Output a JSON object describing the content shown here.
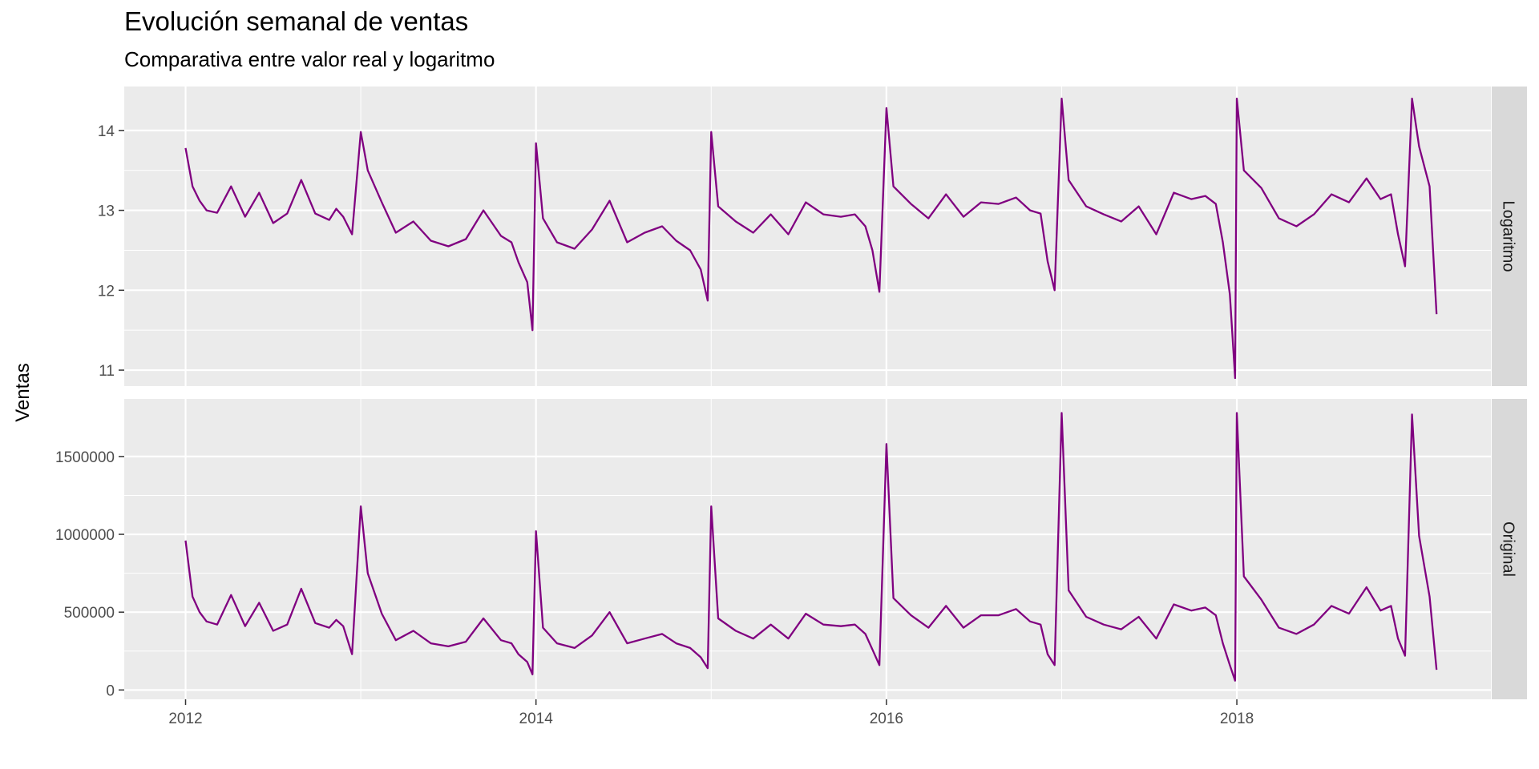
{
  "chart_data": {
    "type": "line",
    "title": "Evolución semanal de ventas",
    "subtitle": "Comparativa entre valor real y logaritmo",
    "xlabel": "",
    "ylabel": "Ventas",
    "line_color": "#800080",
    "panel_background": "#ebebeb",
    "strip_background": "#d9d9d9",
    "grid": true,
    "facet": "rows, strip labels on right",
    "x_ticks": [
      "2012",
      "2014",
      "2016",
      "2018"
    ],
    "xlim": [
      2011.65,
      2019.45
    ],
    "panels": [
      {
        "name": "Logaritmo",
        "ylim": [
          10.8,
          14.55
        ],
        "y_ticks": [
          11,
          12,
          13,
          14
        ],
        "y_tick_labels": [
          "11",
          "12",
          "13",
          "14"
        ],
        "x": [
          2012.0,
          2012.04,
          2012.08,
          2012.12,
          2012.18,
          2012.26,
          2012.34,
          2012.42,
          2012.5,
          2012.58,
          2012.66,
          2012.74,
          2012.82,
          2012.86,
          2012.9,
          2012.95,
          2013.0,
          2013.04,
          2013.12,
          2013.2,
          2013.3,
          2013.4,
          2013.5,
          2013.6,
          2013.7,
          2013.8,
          2013.86,
          2013.9,
          2013.95,
          2013.98,
          2014.0,
          2014.04,
          2014.12,
          2014.22,
          2014.32,
          2014.42,
          2014.52,
          2014.62,
          2014.72,
          2014.8,
          2014.88,
          2014.94,
          2014.98,
          2015.0,
          2015.04,
          2015.14,
          2015.24,
          2015.34,
          2015.44,
          2015.54,
          2015.64,
          2015.74,
          2015.82,
          2015.88,
          2015.92,
          2015.96,
          2016.0,
          2016.04,
          2016.14,
          2016.24,
          2016.34,
          2016.44,
          2016.54,
          2016.64,
          2016.74,
          2016.82,
          2016.88,
          2016.92,
          2016.96,
          2017.0,
          2017.04,
          2017.14,
          2017.24,
          2017.34,
          2017.44,
          2017.54,
          2017.64,
          2017.74,
          2017.82,
          2017.88,
          2017.92,
          2017.96,
          2017.99,
          2018.0,
          2018.04,
          2018.14,
          2018.24,
          2018.34,
          2018.44,
          2018.54,
          2018.64,
          2018.74,
          2018.82,
          2018.88,
          2018.92,
          2018.96,
          2019.0,
          2019.04,
          2019.1,
          2019.14
        ],
        "values": [
          13.78,
          13.3,
          13.12,
          13.0,
          12.97,
          13.3,
          12.92,
          13.22,
          12.84,
          12.96,
          13.38,
          12.96,
          12.88,
          13.02,
          12.92,
          12.7,
          13.98,
          13.5,
          13.1,
          12.72,
          12.86,
          12.62,
          12.55,
          12.64,
          13.0,
          12.68,
          12.6,
          12.35,
          12.1,
          11.5,
          13.84,
          12.9,
          12.6,
          12.52,
          12.76,
          13.12,
          12.6,
          12.72,
          12.8,
          12.62,
          12.5,
          12.26,
          11.87,
          13.98,
          13.05,
          12.86,
          12.72,
          12.95,
          12.7,
          13.1,
          12.95,
          12.92,
          12.95,
          12.8,
          12.5,
          11.98,
          14.28,
          13.3,
          13.08,
          12.9,
          13.2,
          12.92,
          13.1,
          13.08,
          13.16,
          13.0,
          12.96,
          12.36,
          12.0,
          14.4,
          13.38,
          13.05,
          12.95,
          12.86,
          13.05,
          12.7,
          13.22,
          13.14,
          13.18,
          13.08,
          12.6,
          11.95,
          10.9,
          14.4,
          13.5,
          13.28,
          12.9,
          12.8,
          12.95,
          13.2,
          13.1,
          13.4,
          13.14,
          13.2,
          12.7,
          12.3,
          14.4,
          13.8,
          13.3,
          11.7
        ]
      },
      {
        "name": "Original",
        "ylim": [
          -60000,
          1870000
        ],
        "y_ticks": [
          0,
          500000,
          1000000,
          1500000
        ],
        "y_tick_labels": [
          "0",
          "500000",
          "1000000",
          "1500000"
        ],
        "x": [
          2012.0,
          2012.04,
          2012.08,
          2012.12,
          2012.18,
          2012.26,
          2012.34,
          2012.42,
          2012.5,
          2012.58,
          2012.66,
          2012.74,
          2012.82,
          2012.86,
          2012.9,
          2012.95,
          2013.0,
          2013.04,
          2013.12,
          2013.2,
          2013.3,
          2013.4,
          2013.5,
          2013.6,
          2013.7,
          2013.8,
          2013.86,
          2013.9,
          2013.95,
          2013.98,
          2014.0,
          2014.04,
          2014.12,
          2014.22,
          2014.32,
          2014.42,
          2014.52,
          2014.62,
          2014.72,
          2014.8,
          2014.88,
          2014.94,
          2014.98,
          2015.0,
          2015.04,
          2015.14,
          2015.24,
          2015.34,
          2015.44,
          2015.54,
          2015.64,
          2015.74,
          2015.82,
          2015.88,
          2015.92,
          2015.96,
          2016.0,
          2016.04,
          2016.14,
          2016.24,
          2016.34,
          2016.44,
          2016.54,
          2016.64,
          2016.74,
          2016.82,
          2016.88,
          2016.92,
          2016.96,
          2017.0,
          2017.04,
          2017.14,
          2017.24,
          2017.34,
          2017.44,
          2017.54,
          2017.64,
          2017.74,
          2017.82,
          2017.88,
          2017.92,
          2017.96,
          2017.99,
          2018.0,
          2018.04,
          2018.14,
          2018.24,
          2018.34,
          2018.44,
          2018.54,
          2018.64,
          2018.74,
          2018.82,
          2018.88,
          2018.92,
          2018.96,
          2019.0,
          2019.04,
          2019.1,
          2019.14
        ],
        "values": [
          960000,
          600000,
          500000,
          440000,
          420000,
          610000,
          410000,
          560000,
          380000,
          420000,
          650000,
          430000,
          400000,
          450000,
          410000,
          230000,
          1180000,
          750000,
          490000,
          320000,
          380000,
          300000,
          280000,
          310000,
          460000,
          320000,
          300000,
          230000,
          180000,
          100000,
          1020000,
          400000,
          300000,
          270000,
          350000,
          500000,
          300000,
          330000,
          360000,
          300000,
          270000,
          210000,
          140000,
          1180000,
          460000,
          380000,
          330000,
          420000,
          330000,
          490000,
          420000,
          410000,
          420000,
          360000,
          260000,
          160000,
          1580000,
          590000,
          480000,
          400000,
          540000,
          400000,
          480000,
          480000,
          520000,
          440000,
          420000,
          230000,
          160000,
          1780000,
          640000,
          470000,
          420000,
          390000,
          470000,
          330000,
          550000,
          510000,
          530000,
          480000,
          300000,
          160000,
          60000,
          1780000,
          730000,
          580000,
          400000,
          360000,
          420000,
          540000,
          490000,
          660000,
          510000,
          540000,
          330000,
          220000,
          1770000,
          990000,
          600000,
          130000
        ]
      }
    ]
  }
}
